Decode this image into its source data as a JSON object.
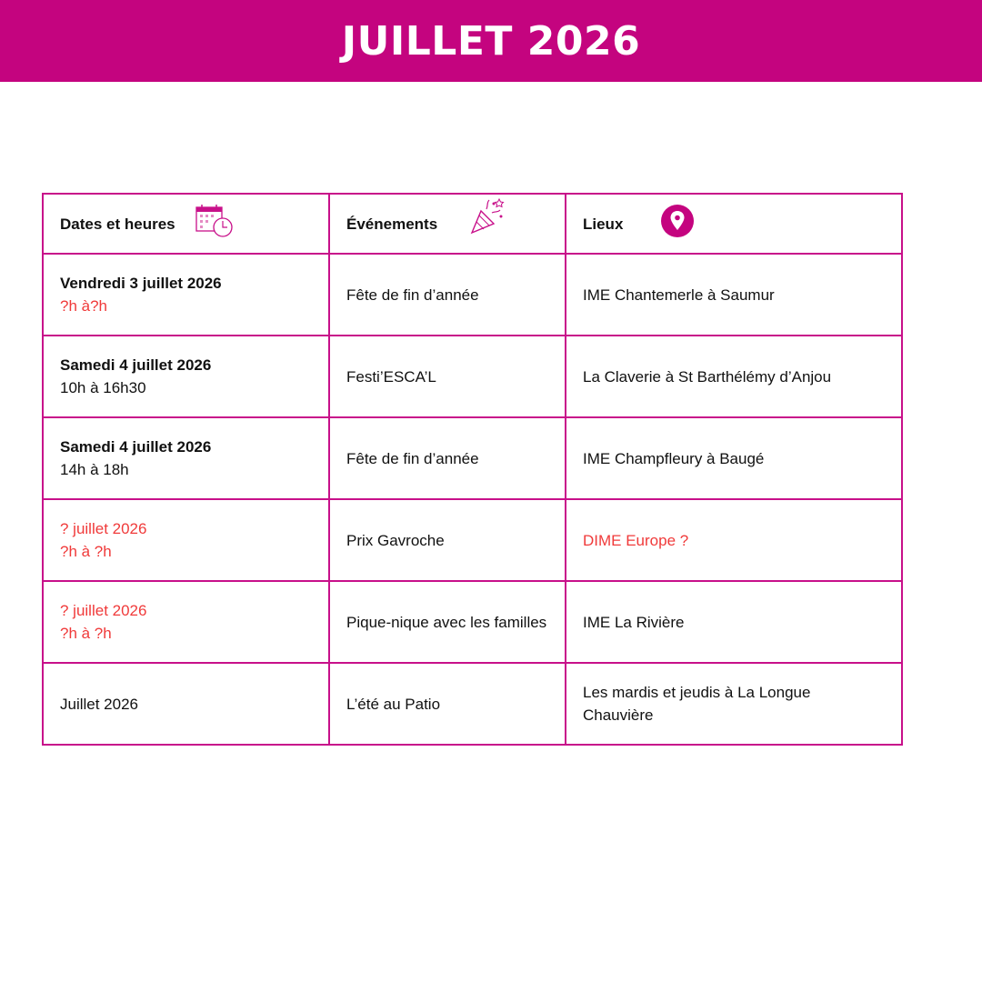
{
  "title": "JUILLET 2026",
  "colors": {
    "brand": "#C4047F",
    "border": "#C8108A",
    "uncertain": "#F03A3A"
  },
  "headers": [
    {
      "label": "Dates et heures",
      "icon": "calendar-clock-icon"
    },
    {
      "label": "Événements",
      "icon": "party-popper-icon"
    },
    {
      "label": "Lieux",
      "icon": "map-pin-icon"
    }
  ],
  "rows": [
    {
      "date": "Vendredi 3 juillet 2026",
      "time": "?h à?h",
      "event": "Fête de fin d’année",
      "place": "IME Chantemerle à Saumur"
    },
    {
      "date": "Samedi 4 juillet 2026",
      "time": "10h à 16h30",
      "event": "Festi’ESCA’L",
      "place": "La Claverie à St Barthélémy d’Anjou"
    },
    {
      "date": "Samedi 4 juillet 2026",
      "time": "14h à 18h",
      "event": "Fête de fin d’année",
      "place": "IME Champfleury à Baugé"
    },
    {
      "date": "? juillet 2026",
      "time": "?h à ?h",
      "event": "Prix Gavroche",
      "place": "DIME Europe ?"
    },
    {
      "date": "? juillet 2026",
      "time": "?h à ?h",
      "event": "Pique-nique avec les familles",
      "place": "IME La Rivière"
    },
    {
      "date": "Juillet 2026",
      "time": "",
      "event": "L’été au Patio",
      "place": "Les mardis et jeudis à La Longue Chauvière"
    }
  ]
}
